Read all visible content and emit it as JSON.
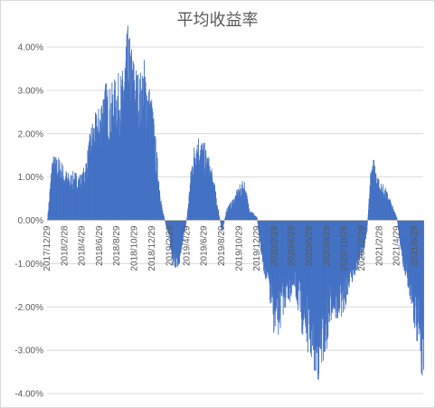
{
  "chart_data": {
    "type": "bar",
    "title": "平均收益率",
    "xlabel": "",
    "ylabel": "",
    "ylim": [
      -0.04,
      0.04
    ],
    "y_tick_labels": [
      "4.00%",
      "3.00%",
      "2.00%",
      "1.00%",
      "0.00%",
      "-1.00%",
      "-2.00%",
      "-3.00%",
      "-4.00%"
    ],
    "y_tick_values": [
      0.04,
      0.03,
      0.02,
      0.01,
      0.0,
      -0.01,
      -0.02,
      -0.03,
      -0.04
    ],
    "x_tick_labels": [
      "2017/12/29",
      "2018/2/28",
      "2018/4/29",
      "2018/6/29",
      "2018/8/29",
      "2018/10/29",
      "2018/12/29",
      "2019/2/28",
      "2019/4/29",
      "2019/6/29",
      "2019/8/29",
      "2019/10/29",
      "2019/12/29",
      "2020/2/29",
      "2020/4/29",
      "2020/6/29",
      "2020/8/29",
      "2020/10/29",
      "2020/12/29",
      "2021/2/28",
      "2021/4/29",
      "2021/6/29"
    ],
    "grid": true,
    "legend": "none",
    "bar_color": "#4472C4",
    "grid_color": "#d9d9d9",
    "series": [
      {
        "points": [
          [
            "2017/12/29",
            0.0
          ],
          [
            "2018/1/15",
            0.012
          ],
          [
            "2018/2/10",
            0.0115
          ],
          [
            "2018/2/28",
            0.0095
          ],
          [
            "2018/3/15",
            0.0085
          ],
          [
            "2018/4/1",
            0.009
          ],
          [
            "2018/4/29",
            0.0085
          ],
          [
            "2018/5/15",
            0.012
          ],
          [
            "2018/6/1",
            0.018
          ],
          [
            "2018/6/29",
            0.021
          ],
          [
            "2018/7/15",
            0.026
          ],
          [
            "2018/8/1",
            0.024
          ],
          [
            "2018/8/29",
            0.0265
          ],
          [
            "2018/9/15",
            0.027
          ],
          [
            "2018/10/5",
            0.0355
          ],
          [
            "2018/10/29",
            0.029
          ],
          [
            "2018/11/15",
            0.0265
          ],
          [
            "2018/12/1",
            0.0295
          ],
          [
            "2018/12/29",
            0.022
          ],
          [
            "2019/1/15",
            0.012
          ],
          [
            "2019/2/1",
            0.0025
          ],
          [
            "2019/2/28",
            -0.0045
          ],
          [
            "2019/3/15",
            -0.0095
          ],
          [
            "2019/4/1",
            -0.0085
          ],
          [
            "2019/4/29",
            0.0005
          ],
          [
            "2019/5/15",
            0.011
          ],
          [
            "2019/6/1",
            0.0165
          ],
          [
            "2019/6/29",
            0.014
          ],
          [
            "2019/7/15",
            0.0115
          ],
          [
            "2019/8/1",
            0.0075
          ],
          [
            "2019/8/29",
            -0.0025
          ],
          [
            "2019/9/15",
            0.0025
          ],
          [
            "2019/10/1",
            0.0035
          ],
          [
            "2019/10/29",
            0.0065
          ],
          [
            "2019/11/15",
            0.0075
          ],
          [
            "2019/12/1",
            0.0025
          ],
          [
            "2019/12/29",
            0.0005
          ],
          [
            "2020/1/15",
            -0.008
          ],
          [
            "2020/2/1",
            -0.012
          ],
          [
            "2020/2/29",
            -0.022
          ],
          [
            "2020/3/15",
            -0.021
          ],
          [
            "2020/4/1",
            -0.0165
          ],
          [
            "2020/4/29",
            -0.0145
          ],
          [
            "2020/5/15",
            -0.0155
          ],
          [
            "2020/6/1",
            -0.0205
          ],
          [
            "2020/6/29",
            -0.025
          ],
          [
            "2020/7/15",
            -0.028
          ],
          [
            "2020/8/1",
            -0.0295
          ],
          [
            "2020/8/29",
            -0.0235
          ],
          [
            "2020/9/15",
            -0.0175
          ],
          [
            "2020/10/1",
            -0.019
          ],
          [
            "2020/10/29",
            -0.0165
          ],
          [
            "2020/11/15",
            -0.0125
          ],
          [
            "2020/12/1",
            -0.0105
          ],
          [
            "2020/12/29",
            -0.0075
          ],
          [
            "2021/1/15",
            -0.002
          ],
          [
            "2021/2/1",
            0.013
          ],
          [
            "2021/2/28",
            0.007
          ],
          [
            "2021/3/15",
            0.0065
          ],
          [
            "2021/4/1",
            0.0045
          ],
          [
            "2021/4/29",
            0.0005
          ],
          [
            "2021/5/15",
            -0.0075
          ],
          [
            "2021/6/1",
            -0.011
          ],
          [
            "2021/6/29",
            -0.0195
          ],
          [
            "2021/7/15",
            -0.0255
          ],
          [
            "2021/7/31",
            -0.0305
          ]
        ]
      }
    ]
  }
}
